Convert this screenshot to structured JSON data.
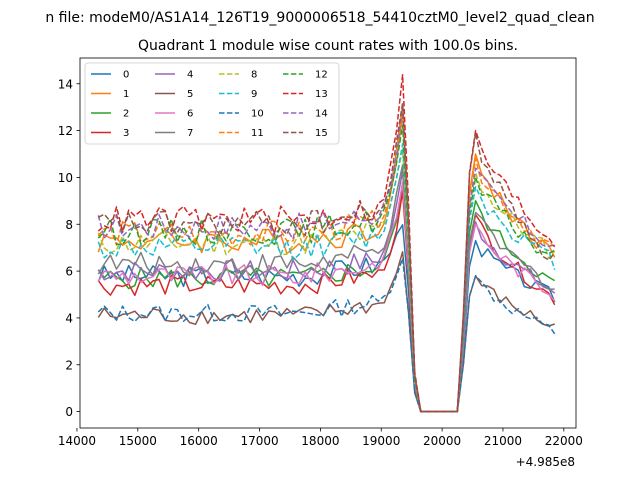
{
  "chart_data": {
    "type": "line",
    "suptitle": "n file: modeM0/AS1A14_126T19_9000006518_54410cztM0_level2_quad_clean",
    "title": "Quadrant 1 module wise count rates with 100.0s bins.",
    "xlabel": "",
    "ylabel": "",
    "xlim": [
      14050,
      22200
    ],
    "ylim": [
      -0.7,
      15.1
    ],
    "x_offset_label": "+4.985e8",
    "xticks": [
      14000,
      15000,
      16000,
      17000,
      18000,
      19000,
      20000,
      21000,
      22000
    ],
    "xtick_labels": [
      "14000",
      "15000",
      "16000",
      "17000",
      "18000",
      "19000",
      "20000",
      "21000",
      "22000"
    ],
    "yticks": [
      0,
      2,
      4,
      6,
      8,
      10,
      12,
      14
    ],
    "ytick_labels": [
      "0",
      "2",
      "4",
      "6",
      "8",
      "10",
      "12",
      "14"
    ],
    "legend_location": "upper-left",
    "legend_columns": 4,
    "x_start": 14350,
    "x_step": 100,
    "series": [
      {
        "name": "0",
        "color": "#1f77b4",
        "dash": "solid",
        "base": 5.8,
        "peak": 8.2,
        "post": 7.3,
        "end": 4.9
      },
      {
        "name": "1",
        "color": "#ff7f0e",
        "dash": "solid",
        "base": 7.3,
        "peak": 12.5,
        "post": 11.0,
        "end": 6.6
      },
      {
        "name": "2",
        "color": "#2ca02c",
        "dash": "solid",
        "base": 5.7,
        "peak": 9.6,
        "post": 9.0,
        "end": 5.4
      },
      {
        "name": "3",
        "color": "#d62728",
        "dash": "solid",
        "base": 5.4,
        "peak": 9.3,
        "post": 8.4,
        "end": 4.8
      },
      {
        "name": "4",
        "color": "#9467bd",
        "dash": "solid",
        "base": 6.0,
        "peak": 10.2,
        "post": 8.1,
        "end": 5.1
      },
      {
        "name": "5",
        "color": "#8c564b",
        "dash": "solid",
        "base": 4.1,
        "peak": 6.8,
        "post": 5.8,
        "end": 3.6
      },
      {
        "name": "6",
        "color": "#e377c2",
        "dash": "solid",
        "base": 5.8,
        "peak": 9.8,
        "post": 8.0,
        "end": 5.0
      },
      {
        "name": "7",
        "color": "#7f7f7f",
        "dash": "solid",
        "base": 6.3,
        "peak": 10.6,
        "post": 8.5,
        "end": 5.3
      },
      {
        "name": "8",
        "color": "#bcbd22",
        "dash": "dashed",
        "base": 7.2,
        "peak": 11.3,
        "post": 10.2,
        "end": 6.7
      },
      {
        "name": "9",
        "color": "#17becf",
        "dash": "dashed",
        "base": 7.0,
        "peak": 11.6,
        "post": 9.6,
        "end": 6.4
      },
      {
        "name": "10",
        "color": "#1f77b4",
        "dash": "dashed",
        "base": 4.2,
        "peak": 6.7,
        "post": 5.8,
        "end": 3.4
      },
      {
        "name": "11",
        "color": "#ff7f0e",
        "dash": "dashed",
        "base": 7.6,
        "peak": 12.8,
        "post": 10.8,
        "end": 6.9
      },
      {
        "name": "12",
        "color": "#2ca02c",
        "dash": "dashed",
        "base": 7.7,
        "peak": 12.0,
        "post": 10.0,
        "end": 6.5
      },
      {
        "name": "13",
        "color": "#d62728",
        "dash": "dashed",
        "base": 8.2,
        "peak": 14.2,
        "post": 12.0,
        "end": 7.2
      },
      {
        "name": "14",
        "color": "#9467bd",
        "dash": "dashed",
        "base": 7.9,
        "peak": 12.9,
        "post": 10.4,
        "end": 7.0
      },
      {
        "name": "15",
        "color": "#8c564b",
        "dash": "dashed",
        "base": 8.0,
        "peak": 13.1,
        "post": 11.9,
        "end": 6.4
      }
    ]
  }
}
